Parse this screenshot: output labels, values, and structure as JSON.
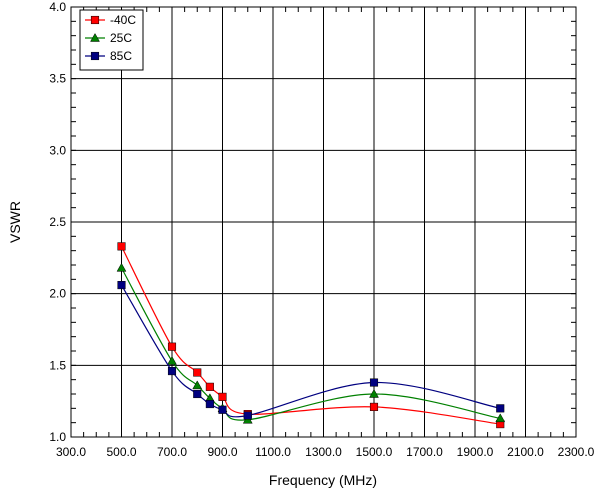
{
  "chart_data": {
    "type": "line",
    "title": "",
    "xlabel": "Frequency (MHz)",
    "ylabel": "VSWR",
    "xlim": [
      300,
      2300
    ],
    "ylim": [
      1.0,
      4.0
    ],
    "xticks": [
      300,
      500,
      700,
      900,
      1100,
      1300,
      1500,
      1700,
      1900,
      2100,
      2300
    ],
    "xtick_labels": [
      "300.0",
      "500.0",
      "700.0",
      "900.0",
      "1100.0",
      "1300.0",
      "1500.0",
      "1700.0",
      "1900.0",
      "2100.0",
      "2300.0"
    ],
    "yticks": [
      1.0,
      1.5,
      2.0,
      2.5,
      3.0,
      3.5,
      4.0
    ],
    "ytick_labels": [
      "1.0",
      "1.5",
      "2.0",
      "2.5",
      "3.0",
      "3.5",
      "4.0"
    ],
    "grid": true,
    "legend_position": "top-left",
    "x": [
      500,
      700,
      800,
      850,
      900,
      1000,
      1500,
      2000
    ],
    "series": [
      {
        "name": "-40C",
        "color": "#ff0000",
        "marker": "square",
        "values": [
          2.33,
          1.63,
          1.45,
          1.35,
          1.28,
          1.16,
          1.21,
          1.09
        ]
      },
      {
        "name": "25C",
        "color": "#008000",
        "marker": "triangle",
        "values": [
          2.18,
          1.53,
          1.36,
          1.27,
          1.2,
          1.12,
          1.3,
          1.13
        ]
      },
      {
        "name": "85C",
        "color": "#000080",
        "marker": "square",
        "values": [
          2.06,
          1.46,
          1.3,
          1.23,
          1.19,
          1.15,
          1.38,
          1.2
        ]
      }
    ]
  }
}
